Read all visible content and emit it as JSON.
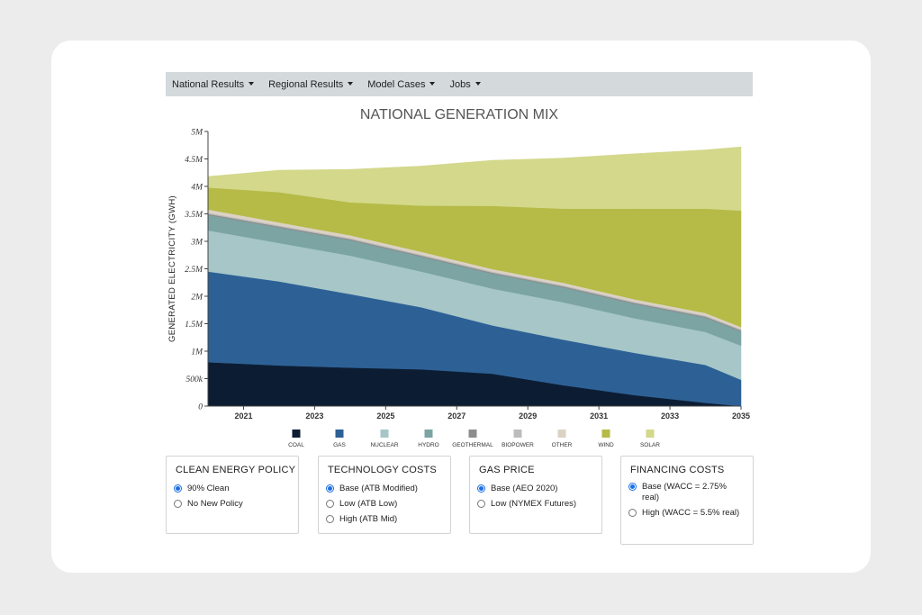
{
  "nav": {
    "items": [
      {
        "label": "National Results"
      },
      {
        "label": "Regional Results"
      },
      {
        "label": "Model Cases"
      },
      {
        "label": "Jobs"
      }
    ]
  },
  "chart_data": {
    "type": "area",
    "stacked": true,
    "title": "NATIONAL GENERATION MIX",
    "ylabel": "GENERATED ELECTRICITY (GWH)",
    "xlabel": "",
    "x": [
      2020,
      2022,
      2024,
      2026,
      2028,
      2030,
      2032,
      2034,
      2035
    ],
    "xlim": [
      2020,
      2035
    ],
    "xticks": [
      "2021",
      "2023",
      "2025",
      "2027",
      "2029",
      "2031",
      "2033",
      "2035"
    ],
    "ylim": [
      0,
      5000000
    ],
    "yticks": [
      "0",
      "500k",
      "1M",
      "1.5M",
      "2M",
      "2.5M",
      "3M",
      "3.5M",
      "4M",
      "4.5M",
      "5M"
    ],
    "legend_position": "bottom",
    "series": [
      {
        "name": "COAL",
        "color": "#0c1d33",
        "values": [
          800000,
          740000,
          700000,
          670000,
          590000,
          380000,
          200000,
          60000,
          0
        ]
      },
      {
        "name": "GAS",
        "color": "#2d6196",
        "values": [
          1650000,
          1530000,
          1340000,
          1130000,
          880000,
          830000,
          770000,
          690000,
          480000
        ]
      },
      {
        "name": "NUCLEAR",
        "color": "#a6c6c8",
        "values": [
          750000,
          700000,
          700000,
          650000,
          670000,
          680000,
          630000,
          600000,
          620000
        ]
      },
      {
        "name": "HYDRO",
        "color": "#7ba4a3",
        "values": [
          280000,
          280000,
          280000,
          270000,
          270000,
          270000,
          260000,
          260000,
          260000
        ]
      },
      {
        "name": "GEOTHERMAL",
        "color": "#8d8d8d",
        "values": [
          20000,
          20000,
          20000,
          20000,
          20000,
          20000,
          20000,
          20000,
          20000
        ]
      },
      {
        "name": "BIOPOWER",
        "color": "#bcbcbc",
        "values": [
          20000,
          20000,
          20000,
          20000,
          20000,
          20000,
          20000,
          20000,
          20000
        ]
      },
      {
        "name": "OTHER",
        "color": "#dcd2c4",
        "values": [
          60000,
          55000,
          50000,
          50000,
          45000,
          45000,
          45000,
          45000,
          40000
        ]
      },
      {
        "name": "WIND",
        "color": "#b5bb46",
        "values": [
          400000,
          550000,
          600000,
          840000,
          1150000,
          1350000,
          1650000,
          1900000,
          2120000
        ]
      },
      {
        "name": "SOLAR",
        "color": "#d3d88b",
        "values": [
          200000,
          400000,
          600000,
          720000,
          830000,
          920000,
          1000000,
          1070000,
          1160000
        ]
      }
    ]
  },
  "controls": [
    {
      "title": "CLEAN ENERGY POLICY",
      "options": [
        {
          "label": "90% Clean",
          "selected": true
        },
        {
          "label": "No New Policy",
          "selected": false
        }
      ]
    },
    {
      "title": "TECHNOLOGY COSTS",
      "options": [
        {
          "label": "Base (ATB Modified)",
          "selected": true
        },
        {
          "label": "Low (ATB Low)",
          "selected": false
        },
        {
          "label": "High (ATB Mid)",
          "selected": false
        }
      ]
    },
    {
      "title": "GAS PRICE",
      "options": [
        {
          "label": "Base (AEO 2020)",
          "selected": true
        },
        {
          "label": "Low (NYMEX Futures)",
          "selected": false
        }
      ]
    },
    {
      "title": "FINANCING COSTS",
      "options": [
        {
          "label": "Base (WACC = 2.75% real)",
          "selected": true
        },
        {
          "label": "High (WACC = 5.5% real)",
          "selected": false
        }
      ]
    }
  ]
}
